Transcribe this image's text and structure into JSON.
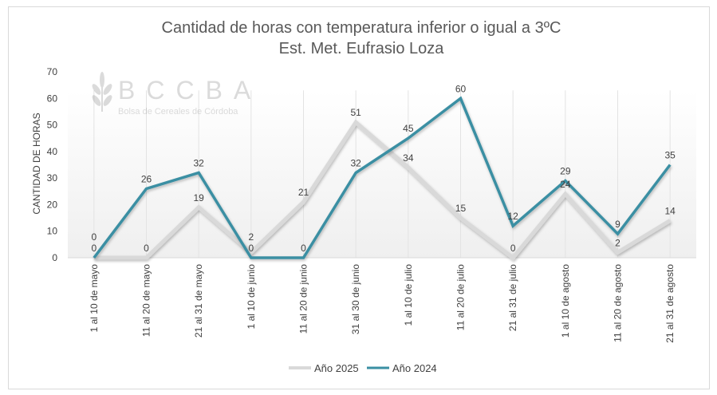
{
  "chart_data": {
    "type": "line",
    "title": "Cantidad de horas con temperatura inferior o igual a 3ºC",
    "subtitle": "Est. Met. Eufrasio Loza",
    "xlabel": "",
    "ylabel": "CANTIDAD DE HORAS",
    "ylim": [
      0,
      70
    ],
    "yticks": [
      0,
      10,
      20,
      30,
      40,
      50,
      60,
      70
    ],
    "grid": "vertical",
    "legend": "bottom",
    "categories": [
      "1 al 10 de mayo",
      "11 al 20 de mayo",
      "21 al 31 de mayo",
      "1 al 10 de junio",
      "11 al 20 de junio",
      "31 al 30 de junio",
      "1 al 10 de julio",
      "11 al 20 de julio",
      "21 al 31 de julio",
      "1 al 10 de agosto",
      "11 al 20 de agosto",
      "21 al 31 de agosto"
    ],
    "series": [
      {
        "name": "Año 2025",
        "color": "#d9d9d9",
        "values": [
          0,
          0,
          19,
          2,
          21,
          51,
          34,
          15,
          0,
          24,
          2,
          14
        ]
      },
      {
        "name": "Año 2024",
        "color": "#3a8fa3",
        "values": [
          0,
          26,
          32,
          0,
          0,
          32,
          45,
          60,
          12,
          29,
          9,
          35
        ]
      }
    ],
    "watermark": {
      "logo": "BCCBA",
      "text": "Bolsa de Cereales de Córdoba"
    }
  }
}
